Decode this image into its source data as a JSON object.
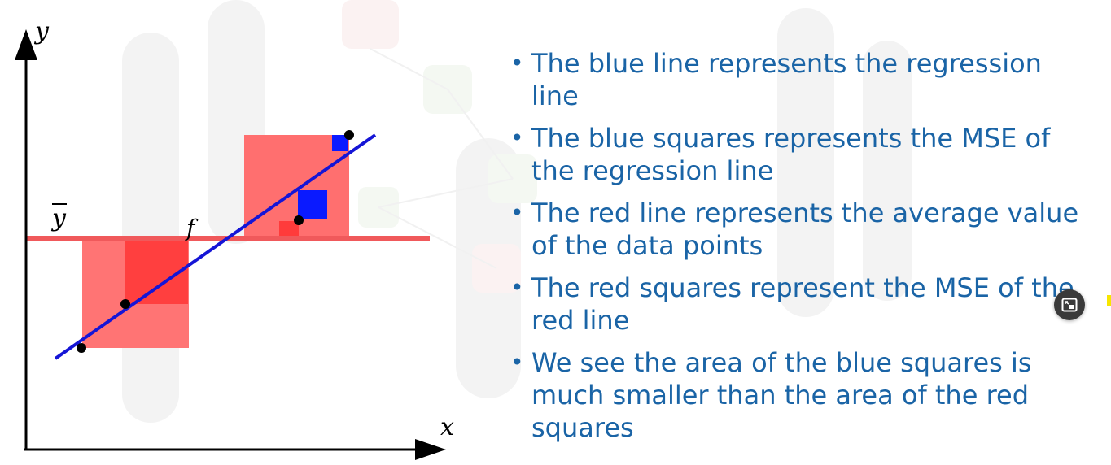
{
  "diagram": {
    "y_axis_label": "y",
    "x_axis_label": "x",
    "mean_label": "y",
    "fit_label": "f"
  },
  "bullets": [
    "The blue line represents the regression line",
    "The blue squares represents the MSE of the regression line",
    "The red line represents the average value of the data points",
    "The red squares represent the MSE of the red line",
    "We see the area of the blue squares is much smaller than the area of the red squares"
  ],
  "colors": {
    "text": "#1a64a6",
    "regression_line": "#1515d6",
    "mean_line": "#f0595b",
    "red_square": "#ff6f6f",
    "red_square_inner": "#ff3b3b",
    "blue_square": "#0a1aff"
  },
  "icons": {
    "pip": "picture-in-picture-icon"
  }
}
